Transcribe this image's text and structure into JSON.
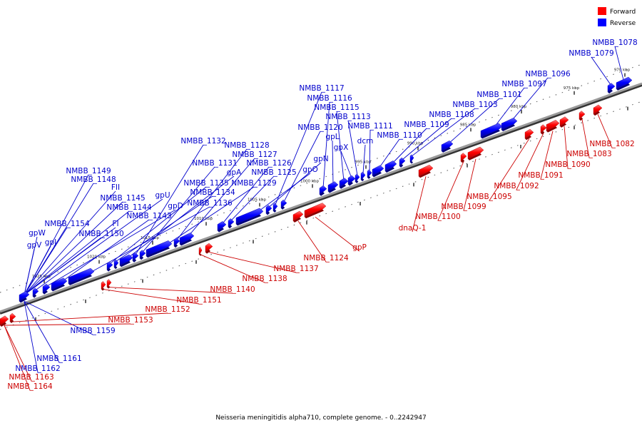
{
  "legend": {
    "forward": {
      "label": "Forward",
      "color": "#ff0000"
    },
    "reverse": {
      "label": "Reverse",
      "color": "#0000ff"
    }
  },
  "caption": "Neisseria meningitidis alpha710, complete genome. - 0..2242947",
  "scale_labels": [
    "970 kbp",
    "975 kbp",
    "980 kbp",
    "985 kbp",
    "990 kbp",
    "995 kbp",
    "1000 kbp",
    "1005 kbp",
    "1010 kbp",
    "1015 kbp",
    "1020 kbp",
    "1025 kbp"
  ],
  "reverse_labels": [
    "NMBB_1078",
    "NMBB_1079",
    "NMBB_1096",
    "NMBB_1097",
    "NMBB_1101",
    "NMBB_1103",
    "NMBB_1108",
    "NMBB_1109",
    "NMBB_1110",
    "NMBB_1111",
    "dcm",
    "NMBB_1113",
    "gpX",
    "NMBB_1115",
    "gpL",
    "NMBB_1116",
    "NMBB_1120",
    "NMBB_1117",
    "gpN",
    "gpO",
    "NMBB_1125",
    "NMBB_1126",
    "NMBB_1127",
    "NMBB_1128",
    "NMBB_1129",
    "NMBB_1131",
    "NMBB_1132",
    "gpA",
    "NMBB_1134",
    "NMBB_1135",
    "NMBB_1136",
    "NMBB_1143",
    "gpD",
    "gpU",
    "NMBB_1144",
    "NMBB_1145",
    "FII",
    "NMBB_1148",
    "NMBB_1149",
    "FI",
    "NMBB_1150",
    "NMBB_1154",
    "gpW",
    "gpV",
    "gpJ",
    "NMBB_1159",
    "NMBB_1161",
    "NMBB_1162"
  ],
  "forward_labels": [
    "NMBB_1082",
    "NMBB_1083",
    "NMBB_1090",
    "NMBB_1091",
    "NMBB_1092",
    "NMBB_1095",
    "NMBB_1099",
    "NMBB_1100",
    "dnaQ-1",
    "gpP",
    "NMBB_1124",
    "NMBB_1137",
    "NMBB_1138",
    "NMBB_1140",
    "NMBB_1151",
    "NMBB_1152",
    "NMBB_1153",
    "NMBB_1163",
    "NMBB_1164"
  ]
}
